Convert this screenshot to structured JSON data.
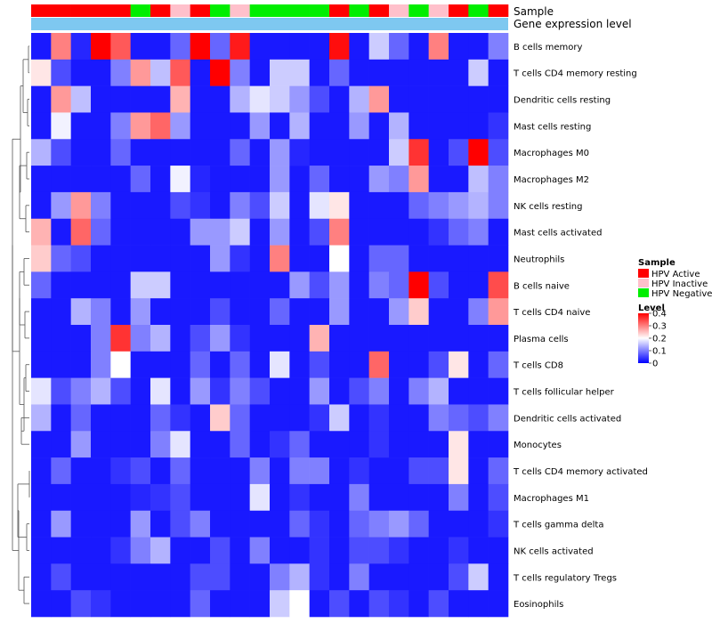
{
  "chart_data": {
    "type": "heatmap",
    "title": "",
    "annotation_labels": {
      "sample": "Sample",
      "gene": "Gene expression level"
    },
    "legend": {
      "sample_title": "Sample",
      "sample_entries": [
        {
          "label": "HPV Active",
          "color": "#ff0000"
        },
        {
          "label": "HPV Inactive",
          "color": "#ffc0cb"
        },
        {
          "label": "HPV Negative",
          "color": "#00ee00"
        }
      ],
      "level_title": "Level",
      "level_ticks": [
        0.4,
        0.3,
        0.2,
        0.1,
        0
      ],
      "level_tick_labels": [
        "0.4",
        "0.3",
        "0.2",
        "0.1",
        "0"
      ],
      "color_scale": {
        "low": "#0000ff",
        "mid": "#ffffff",
        "high": "#ff0000",
        "min": 0,
        "mid_value": 0.2,
        "max": 0.4
      }
    },
    "columns_sample": [
      "A",
      "A",
      "A",
      "A",
      "A",
      "N",
      "A",
      "I",
      "A",
      "N",
      "I",
      "N",
      "N",
      "N",
      "N",
      "A",
      "N",
      "A",
      "I",
      "N",
      "I",
      "A",
      "N",
      "A"
    ],
    "sample_colors": {
      "A": "#ff0000",
      "I": "#ffc0cb",
      "N": "#00ee00"
    },
    "gene_expression_color": "#7ec8f0",
    "rows": [
      {
        "label": "B cells memory",
        "values": [
          0.02,
          0.3,
          0.03,
          0.4,
          0.33,
          0.02,
          0.02,
          0.08,
          0.4,
          0.08,
          0.38,
          0.02,
          0.02,
          0.02,
          0.02,
          0.39,
          0.02,
          0.16,
          0.08,
          0.02,
          0.3,
          0.02,
          0.02,
          0.1
        ]
      },
      {
        "label": "T cells CD4 memory resting",
        "values": [
          0.22,
          0.06,
          0.02,
          0.02,
          0.1,
          0.28,
          0.15,
          0.33,
          0.02,
          0.4,
          0.1,
          0.02,
          0.16,
          0.16,
          0.02,
          0.08,
          0.02,
          0.02,
          0.02,
          0.02,
          0.02,
          0.02,
          0.16,
          0.02
        ]
      },
      {
        "label": "Dendritic cells resting",
        "values": [
          0.02,
          0.28,
          0.15,
          0.02,
          0.02,
          0.02,
          0.02,
          0.26,
          0.02,
          0.02,
          0.14,
          0.18,
          0.16,
          0.12,
          0.06,
          0.02,
          0.14,
          0.28,
          0.02,
          0.02,
          0.02,
          0.02,
          0.02,
          0.02
        ]
      },
      {
        "label": "Mast cells resting",
        "values": [
          0.02,
          0.19,
          0.02,
          0.02,
          0.1,
          0.28,
          0.32,
          0.12,
          0.02,
          0.02,
          0.02,
          0.12,
          0.02,
          0.14,
          0.02,
          0.02,
          0.12,
          0.02,
          0.14,
          0.02,
          0.02,
          0.02,
          0.02,
          0.04
        ]
      },
      {
        "label": "Macrophages M0",
        "values": [
          0.14,
          0.06,
          0.02,
          0.02,
          0.08,
          0.02,
          0.02,
          0.02,
          0.02,
          0.02,
          0.08,
          0.02,
          0.12,
          0.03,
          0.02,
          0.02,
          0.02,
          0.02,
          0.16,
          0.36,
          0.02,
          0.06,
          0.4,
          0.06
        ]
      },
      {
        "label": "Macrophages M2",
        "values": [
          0.02,
          0.02,
          0.02,
          0.02,
          0.02,
          0.08,
          0.02,
          0.19,
          0.03,
          0.02,
          0.02,
          0.02,
          0.12,
          0.02,
          0.08,
          0.02,
          0.02,
          0.12,
          0.1,
          0.28,
          0.02,
          0.02,
          0.15,
          0.1
        ]
      },
      {
        "label": "NK cells resting",
        "values": [
          0.02,
          0.12,
          0.28,
          0.1,
          0.02,
          0.02,
          0.02,
          0.06,
          0.04,
          0.02,
          0.1,
          0.06,
          0.16,
          0.02,
          0.18,
          0.22,
          0.02,
          0.02,
          0.02,
          0.08,
          0.1,
          0.12,
          0.14,
          0.1
        ]
      },
      {
        "label": "Mast cells activated",
        "values": [
          0.26,
          0.02,
          0.32,
          0.08,
          0.02,
          0.02,
          0.02,
          0.02,
          0.12,
          0.12,
          0.16,
          0.02,
          0.12,
          0.02,
          0.06,
          0.3,
          0.02,
          0.02,
          0.02,
          0.02,
          0.04,
          0.08,
          0.1,
          0.02
        ]
      },
      {
        "label": "Neutrophils",
        "values": [
          0.24,
          0.08,
          0.06,
          0.02,
          0.02,
          0.02,
          0.02,
          0.02,
          0.02,
          0.12,
          0.04,
          0.02,
          0.3,
          0.02,
          0.02,
          0.2,
          0.02,
          0.08,
          0.08,
          0.02,
          0.02,
          0.02,
          0.02,
          0.02
        ]
      },
      {
        "label": "B cells naive",
        "values": [
          0.08,
          0.02,
          0.02,
          0.02,
          0.02,
          0.16,
          0.16,
          0.02,
          0.02,
          0.02,
          0.02,
          0.02,
          0.02,
          0.12,
          0.06,
          0.12,
          0.02,
          0.1,
          0.08,
          0.4,
          0.06,
          0.02,
          0.02,
          0.34
        ]
      },
      {
        "label": "T cells CD4 naive",
        "values": [
          0.02,
          0.02,
          0.14,
          0.1,
          0.02,
          0.12,
          0.02,
          0.02,
          0.02,
          0.06,
          0.02,
          0.02,
          0.08,
          0.02,
          0.02,
          0.12,
          0.02,
          0.02,
          0.12,
          0.24,
          0.02,
          0.02,
          0.1,
          0.28
        ]
      },
      {
        "label": "Plasma cells",
        "values": [
          0.02,
          0.02,
          0.02,
          0.1,
          0.36,
          0.1,
          0.14,
          0.02,
          0.06,
          0.12,
          0.04,
          0.02,
          0.02,
          0.02,
          0.26,
          0.02,
          0.02,
          0.02,
          0.02,
          0.02,
          0.02,
          0.02,
          0.02,
          0.02
        ]
      },
      {
        "label": "T cells CD8",
        "values": [
          0.02,
          0.02,
          0.02,
          0.1,
          0.2,
          0.02,
          0.02,
          0.02,
          0.08,
          0.02,
          0.08,
          0.02,
          0.18,
          0.02,
          0.06,
          0.02,
          0.02,
          0.32,
          0.02,
          0.02,
          0.06,
          0.22,
          0.02,
          0.08
        ]
      },
      {
        "label": "T cells follicular helper",
        "values": [
          0.18,
          0.06,
          0.1,
          0.14,
          0.06,
          0.02,
          0.18,
          0.02,
          0.12,
          0.04,
          0.1,
          0.06,
          0.02,
          0.02,
          0.12,
          0.02,
          0.06,
          0.1,
          0.02,
          0.1,
          0.14,
          0.02,
          0.02,
          0.02
        ]
      },
      {
        "label": "Dendritic cells activated",
        "values": [
          0.14,
          0.02,
          0.08,
          0.02,
          0.02,
          0.02,
          0.08,
          0.04,
          0.02,
          0.24,
          0.08,
          0.02,
          0.02,
          0.02,
          0.04,
          0.16,
          0.02,
          0.04,
          0.02,
          0.02,
          0.1,
          0.08,
          0.06,
          0.1
        ]
      },
      {
        "label": "Monocytes",
        "values": [
          0.02,
          0.02,
          0.12,
          0.02,
          0.02,
          0.02,
          0.1,
          0.18,
          0.02,
          0.02,
          0.08,
          0.02,
          0.04,
          0.08,
          0.02,
          0.02,
          0.02,
          0.04,
          0.02,
          0.02,
          0.02,
          0.22,
          0.02,
          0.02
        ]
      },
      {
        "label": "T cells CD4 memory activated",
        "values": [
          0.02,
          0.08,
          0.02,
          0.02,
          0.04,
          0.06,
          0.02,
          0.08,
          0.02,
          0.02,
          0.02,
          0.1,
          0.02,
          0.1,
          0.1,
          0.02,
          0.04,
          0.02,
          0.02,
          0.06,
          0.06,
          0.22,
          0.02,
          0.08
        ]
      },
      {
        "label": "Macrophages M1",
        "values": [
          0.02,
          0.02,
          0.02,
          0.02,
          0.02,
          0.03,
          0.04,
          0.06,
          0.02,
          0.02,
          0.02,
          0.18,
          0.02,
          0.04,
          0.02,
          0.02,
          0.1,
          0.02,
          0.02,
          0.02,
          0.02,
          0.1,
          0.02,
          0.06
        ]
      },
      {
        "label": "T cells gamma delta",
        "values": [
          0.02,
          0.12,
          0.02,
          0.02,
          0.02,
          0.12,
          0.02,
          0.06,
          0.1,
          0.02,
          0.02,
          0.02,
          0.02,
          0.08,
          0.04,
          0.02,
          0.08,
          0.1,
          0.12,
          0.08,
          0.02,
          0.02,
          0.02,
          0.04
        ]
      },
      {
        "label": "NK cells activated",
        "values": [
          0.02,
          0.02,
          0.02,
          0.02,
          0.04,
          0.1,
          0.14,
          0.02,
          0.02,
          0.06,
          0.02,
          0.1,
          0.02,
          0.02,
          0.04,
          0.02,
          0.06,
          0.06,
          0.04,
          0.02,
          0.02,
          0.04,
          0.02,
          0.02
        ]
      },
      {
        "label": "T cells regulatory  Tregs",
        "values": [
          0.02,
          0.06,
          0.02,
          0.02,
          0.02,
          0.02,
          0.02,
          0.02,
          0.06,
          0.06,
          0.02,
          0.02,
          0.1,
          0.14,
          0.04,
          0.02,
          0.1,
          0.02,
          0.02,
          0.02,
          0.02,
          0.06,
          0.16,
          0.02
        ]
      },
      {
        "label": "Eosinophils",
        "values": [
          0.02,
          0.02,
          0.06,
          0.04,
          0.02,
          0.02,
          0.02,
          0.02,
          0.08,
          0.02,
          0.02,
          0.02,
          0.16,
          0.2,
          0.02,
          0.06,
          0.02,
          0.06,
          0.04,
          0.02,
          0.06,
          0.02,
          0.02,
          0.02
        ]
      }
    ]
  }
}
